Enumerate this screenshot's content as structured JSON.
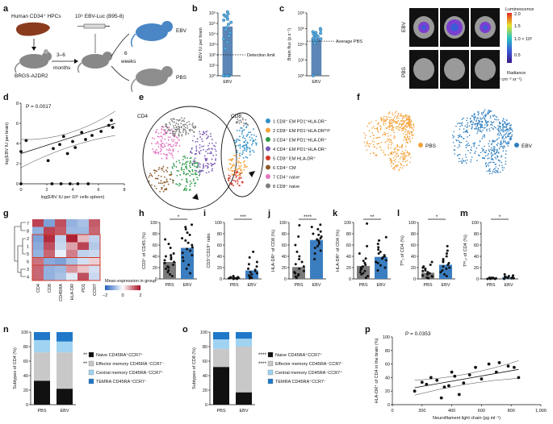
{
  "panel_letters": [
    "a",
    "b",
    "c",
    "d",
    "e",
    "f",
    "g",
    "h",
    "i",
    "j",
    "k",
    "l",
    "m",
    "n",
    "o",
    "p"
  ],
  "a": {
    "donor_label": "Human CD34⁺ HPCs",
    "infection_label": "10⁵ EBV-Luc (B95-8)",
    "mouse_label": "BRGS-A2DR2",
    "time1": "3–6",
    "time1_unit": "months",
    "time2": "6",
    "time2_unit": "weeks",
    "group_ebv": "EBV",
    "group_pbs": "PBS"
  },
  "b": {
    "ylabel": "EBV IU per brain",
    "yticks": [
      "10⁰",
      "10¹",
      "10²",
      "10³",
      "10⁴",
      "10⁵",
      "10⁶"
    ],
    "category": "EBV",
    "bar_log10": 4.7,
    "points_log10": [
      6.1,
      5.9,
      5.8,
      5.7,
      5.6,
      5.4,
      5.3,
      5.1,
      4.9,
      4.6,
      4.4,
      4.1,
      3.8,
      3.5,
      3.2,
      2.6,
      0,
      0,
      0,
      0,
      0,
      0
    ],
    "detection_label": "Detection limit",
    "detection_log10": 2.0
  },
  "c": {
    "ylabel": "Brain flux (p s⁻¹)",
    "yticks": [
      "10⁰",
      "10²",
      "10⁴",
      "10⁶",
      "10⁸"
    ],
    "category": "EBV",
    "bar_log10": 4.8,
    "points_log10": [
      6.0,
      5.8,
      5.6,
      5.5,
      5.4,
      5.3,
      5.2,
      5.1,
      5.0,
      4.9,
      4.8,
      4.7,
      4.6,
      4.5,
      4.4,
      4.2,
      0
    ],
    "avg_label": "Average PBS",
    "avg_log10": 4.4,
    "row_labels": [
      "EBV",
      "PBS"
    ],
    "colorbar_title": "Luminescence",
    "colorbar_ticks": [
      "2.0",
      "1.5",
      "1.0 × 10⁶",
      "0.5"
    ],
    "radiance_label": "Radiance",
    "radiance_units": "(p s⁻¹ cm⁻² sr⁻¹)"
  },
  "d": {
    "pvalue": "P = 0.0017",
    "ylabel": "log(EBV IU per brain)",
    "xlabel": "log(EBV IU per 10⁶ cells spleen)",
    "xticks": [
      "0",
      "2",
      "4",
      "6",
      "8"
    ],
    "yticks": [
      "0",
      "2",
      "4",
      "6",
      "8"
    ],
    "points": [
      [
        0,
        3.2
      ],
      [
        0.4,
        4.3
      ],
      [
        2.1,
        2.3
      ],
      [
        2.5,
        3.5
      ],
      [
        3.0,
        3.9
      ],
      [
        3.3,
        4.7
      ],
      [
        3.6,
        3.0
      ],
      [
        4.0,
        4.2
      ],
      [
        4.2,
        3.6
      ],
      [
        4.7,
        5.1
      ],
      [
        5.0,
        4.4
      ],
      [
        5.5,
        4.8
      ],
      [
        6.2,
        5.2
      ],
      [
        6.8,
        5.8
      ],
      [
        7.0,
        6.3
      ],
      [
        7.1,
        5.6
      ],
      [
        2.4,
        0
      ],
      [
        3.1,
        0
      ],
      [
        3.8,
        0
      ],
      [
        4.4,
        0
      ],
      [
        5.2,
        0
      ],
      [
        0,
        0
      ]
    ]
  },
  "e": {
    "group_cd4": "CD4",
    "group_cd8": "CD8",
    "clusters": [
      {
        "label": "1 CD8⁺ EM PD1⁺HLA-DR⁺",
        "color": "#2f8fc9"
      },
      {
        "label": "2 CD8⁺ EM PD1⁺HLA-DRʰⁱᵍʰ",
        "color": "#f3a23b"
      },
      {
        "label": "3 CD4⁺ EM PD1⁺HLA-DR⁺",
        "color": "#2e9a48"
      },
      {
        "label": "4 CD4⁺ EM PD1⁺HLA-DR⁺",
        "color": "#7c5bb5"
      },
      {
        "label": "5 CD8⁺ EM HLA-DR⁺",
        "color": "#d23a2a"
      },
      {
        "label": "6 CD4⁺ CM",
        "color": "#8b5a2b"
      },
      {
        "label": "7 CD4⁺ naive",
        "color": "#e377c2"
      },
      {
        "label": "8 CD8⁺ naive",
        "color": "#7f7f7f"
      }
    ]
  },
  "f": {
    "pbs_label": "PBS",
    "ebv_label": "EBV",
    "pbs_color": "#f3a23b",
    "ebv_color": "#2f7fbf"
  },
  "g": {
    "rows": [
      "7",
      "8",
      "2",
      "1",
      "5",
      "6",
      "3",
      "4"
    ],
    "cols": [
      "CD4",
      "CD8",
      "CD45RA",
      "HLA-DR",
      "PD1",
      "CCR7"
    ],
    "values": [
      [
        1.6,
        -1.2,
        1.5,
        -1.0,
        -0.8,
        1.4
      ],
      [
        -1.0,
        1.6,
        1.4,
        -0.9,
        -0.9,
        1.3
      ],
      [
        -1.2,
        1.8,
        -0.6,
        1.9,
        0.6,
        -0.6
      ],
      [
        -1.1,
        1.5,
        -0.5,
        0.8,
        1.6,
        -0.7
      ],
      [
        -1.0,
        1.3,
        -0.2,
        1.1,
        -0.6,
        -0.5
      ],
      [
        1.2,
        -1.1,
        -1.2,
        -0.8,
        -0.4,
        0.4
      ],
      [
        1.3,
        -1.0,
        -0.9,
        0.9,
        0.5,
        -0.4
      ],
      [
        1.3,
        -1.0,
        -0.8,
        -0.3,
        1.5,
        -0.5
      ]
    ],
    "legend_title": "Mean expression in group",
    "legend_ticks": [
      "−2",
      "0",
      "2"
    ]
  },
  "dot_panels": [
    {
      "id": "h",
      "ylabel": "CD3⁺ of CD45 (%)",
      "ymax": 100,
      "yticks": [
        "0",
        "20",
        "40",
        "60",
        "80",
        "100"
      ],
      "sig": "*",
      "pbs": [
        5,
        8,
        12,
        15,
        18,
        20,
        22,
        25,
        28,
        30,
        33,
        35,
        38,
        40,
        42,
        45,
        55,
        62,
        70
      ],
      "pbs_mean": 30,
      "ebv": [
        10,
        18,
        25,
        32,
        38,
        42,
        46,
        50,
        53,
        56,
        60,
        64,
        68,
        72,
        78,
        82,
        88,
        92,
        96
      ],
      "ebv_mean": 55
    },
    {
      "id": "i",
      "ylabel": "CD3⁺CD19⁺ ratio",
      "ymax": 100,
      "yticks": [
        "0",
        "20",
        "40",
        "60",
        "80",
        "100"
      ],
      "sig": "***",
      "pbs": [
        0,
        0,
        1,
        1,
        1,
        2,
        2,
        2,
        3,
        3,
        4,
        5
      ],
      "pbs_mean": 2,
      "ebv": [
        1,
        2,
        4,
        6,
        8,
        10,
        12,
        14,
        16,
        18,
        22,
        26,
        30,
        38,
        48
      ],
      "ebv_mean": 15
    },
    {
      "id": "j",
      "ylabel": "HLA-DR⁺ of CD8 (%)",
      "ymax": 100,
      "yticks": [
        "0",
        "20",
        "40",
        "60",
        "80",
        "100"
      ],
      "sig": "****",
      "pbs": [
        2,
        4,
        6,
        8,
        10,
        12,
        14,
        18,
        22,
        26,
        30,
        35,
        40,
        48,
        60,
        75,
        95
      ],
      "pbs_mean": 21,
      "ebv": [
        35,
        45,
        50,
        55,
        58,
        62,
        65,
        68,
        70,
        72,
        75,
        78,
        80,
        84,
        88,
        92,
        96
      ],
      "ebv_mean": 69
    },
    {
      "id": "k",
      "ylabel": "HLA-DR⁺ of CD4 (%)",
      "ymax": 100,
      "yticks": [
        "0",
        "20",
        "40",
        "60",
        "80",
        "100"
      ],
      "sig": "**",
      "pbs": [
        2,
        5,
        8,
        10,
        12,
        14,
        16,
        18,
        20,
        22,
        25,
        28,
        32,
        36,
        45,
        58,
        98
      ],
      "pbs_mean": 23,
      "ebv": [
        15,
        20,
        24,
        28,
        30,
        33,
        36,
        38,
        40,
        42,
        45,
        48,
        52,
        56,
        62,
        68,
        74
      ],
      "ebv_mean": 39
    },
    {
      "id": "l",
      "ylabel": "Tᴹⁱ₁ of CD4 (%)",
      "ymax": 100,
      "yticks": [
        "0",
        "20",
        "40",
        "60",
        "80",
        "100"
      ],
      "sig": "*",
      "pbs": [
        1,
        2,
        4,
        5,
        6,
        8,
        10,
        12,
        14,
        15,
        18,
        20,
        22,
        25,
        30
      ],
      "pbs_mean": 11,
      "ebv": [
        5,
        8,
        12,
        15,
        18,
        20,
        22,
        25,
        28,
        30,
        32,
        35,
        40,
        45,
        50,
        58
      ],
      "ebv_mean": 25
    },
    {
      "id": "m",
      "ylabel": "Tᴹⁱ₁₇ of CD4 (%)",
      "ymax": 100,
      "yticks": [
        "0",
        "20",
        "40",
        "60",
        "80",
        "100"
      ],
      "sig": "*",
      "pbs": [
        0,
        0,
        0,
        1,
        1,
        1,
        1,
        2,
        2,
        2
      ],
      "pbs_mean": 1,
      "ebv": [
        0,
        1,
        1,
        2,
        2,
        3,
        3,
        4,
        5,
        6,
        8
      ],
      "ebv_mean": 3
    }
  ],
  "group_labels": [
    "PBS",
    "EBV"
  ],
  "stacked_panels": [
    {
      "id": "n",
      "ylabel": "Subtypes of CD4 (%)",
      "layers": [
        {
          "label": "Naive CD45RA⁺CCR7⁺",
          "sig": "**",
          "color": "#111111",
          "pbs": 33,
          "ebv": 22
        },
        {
          "label": "Effector memory CD45RA⁻CCR7⁻",
          "sig": "**",
          "color": "#c8c8c8",
          "pbs": 39,
          "ebv": 50
        },
        {
          "label": "Central memory CD45RA⁻CCR7⁺",
          "sig": "",
          "color": "#9fd3f1",
          "pbs": 17,
          "ebv": 15
        },
        {
          "label": "TEMRA CD45RA⁺CCR7⁻",
          "sig": "",
          "color": "#1f78c8",
          "pbs": 11,
          "ebv": 13
        }
      ]
    },
    {
      "id": "o",
      "ylabel": "Subtypes of CD8 (%)",
      "layers": [
        {
          "label": "Naive CD45RA⁺CCR7⁺",
          "sig": "****",
          "color": "#111111",
          "pbs": 52,
          "ebv": 17
        },
        {
          "label": "Effector memory CD45RA⁻CCR7⁻",
          "sig": "****",
          "color": "#c8c8c8",
          "pbs": 25,
          "ebv": 63
        },
        {
          "label": "Central memory CD45RA⁻CCR7⁺",
          "sig": "",
          "color": "#9fd3f1",
          "pbs": 13,
          "ebv": 11
        },
        {
          "label": "TEMRA CD45RA⁺CCR7⁻",
          "sig": "",
          "color": "#1f78c8",
          "pbs": 10,
          "ebv": 9
        }
      ]
    }
  ],
  "stack_yticks": [
    "0",
    "20",
    "40",
    "60",
    "80",
    "100"
  ],
  "p": {
    "pvalue": "P = 0.0353",
    "ylabel": "HLA-DR⁺ of CD4 in the brain (%)",
    "xlabel": "Neurofilament light chain (pg ml⁻¹)",
    "xticks": [
      "0",
      "200",
      "400",
      "600",
      "800",
      "1,000"
    ],
    "yticks": [
      "0",
      "20",
      "40",
      "60",
      "80",
      "100"
    ],
    "points": [
      [
        150,
        20
      ],
      [
        200,
        33
      ],
      [
        230,
        30
      ],
      [
        260,
        40
      ],
      [
        300,
        36
      ],
      [
        330,
        10
      ],
      [
        350,
        26
      ],
      [
        380,
        28
      ],
      [
        400,
        48
      ],
      [
        420,
        42
      ],
      [
        450,
        15
      ],
      [
        480,
        32
      ],
      [
        520,
        44
      ],
      [
        560,
        55
      ],
      [
        600,
        38
      ],
      [
        650,
        60
      ],
      [
        700,
        48
      ],
      [
        720,
        62
      ],
      [
        780,
        57
      ],
      [
        820,
        55
      ],
      [
        850,
        40
      ]
    ]
  }
}
